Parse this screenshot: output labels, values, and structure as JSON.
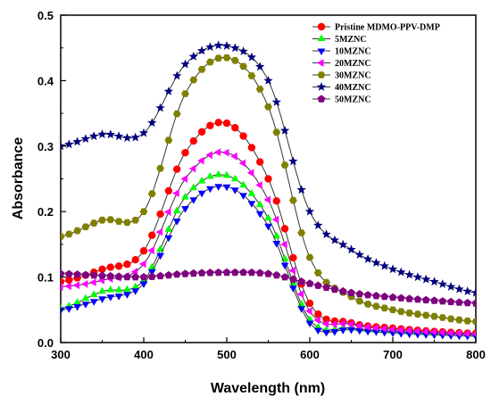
{
  "chart_data": {
    "type": "line",
    "title": "",
    "xlabel": "Wavelength (nm)",
    "ylabel": "Absorbance",
    "xlim": [
      300,
      800
    ],
    "ylim": [
      0.0,
      0.5
    ],
    "xticks": [
      "300",
      "400",
      "500",
      "600",
      "700",
      "800"
    ],
    "yticks": [
      "0.0",
      "0.1",
      "0.2",
      "0.3",
      "0.4",
      "0.5"
    ],
    "grid": false,
    "legend_position": "top-right",
    "x": [
      300,
      350,
      400,
      450,
      500,
      550,
      600,
      650,
      700,
      750,
      800
    ],
    "series": [
      {
        "name": "Pristine MDMO-PPV-DMP",
        "color": "#ff0000",
        "marker": "circle",
        "values": [
          0.093,
          0.112,
          0.14,
          0.29,
          0.335,
          0.25,
          0.06,
          0.03,
          0.022,
          0.017,
          0.014
        ]
      },
      {
        "name": "5MZNC",
        "color": "#00ff00",
        "marker": "triangle-up",
        "values": [
          0.052,
          0.078,
          0.095,
          0.222,
          0.255,
          0.19,
          0.035,
          0.022,
          0.017,
          0.014,
          0.012
        ]
      },
      {
        "name": "10MZNC",
        "color": "#0000ff",
        "marker": "triangle-down",
        "values": [
          0.05,
          0.067,
          0.09,
          0.205,
          0.238,
          0.178,
          0.03,
          0.02,
          0.015,
          0.012,
          0.01
        ]
      },
      {
        "name": "20MZNC",
        "color": "#ff00ff",
        "marker": "triangle-left",
        "values": [
          0.085,
          0.095,
          0.12,
          0.25,
          0.29,
          0.218,
          0.048,
          0.028,
          0.02,
          0.016,
          0.013
        ]
      },
      {
        "name": "30MZNC",
        "color": "#808000",
        "marker": "hexagon",
        "values": [
          0.162,
          0.187,
          0.2,
          0.38,
          0.435,
          0.36,
          0.13,
          0.07,
          0.05,
          0.04,
          0.032
        ]
      },
      {
        "name": "40MZNC",
        "color": "#000080",
        "marker": "star",
        "values": [
          0.3,
          0.318,
          0.32,
          0.425,
          0.453,
          0.4,
          0.2,
          0.142,
          0.112,
          0.093,
          0.076
        ]
      },
      {
        "name": "50MZNC",
        "color": "#800080",
        "marker": "pentagon",
        "values": [
          0.105,
          0.102,
          0.1,
          0.105,
          0.107,
          0.105,
          0.09,
          0.076,
          0.069,
          0.064,
          0.06
        ]
      }
    ]
  }
}
